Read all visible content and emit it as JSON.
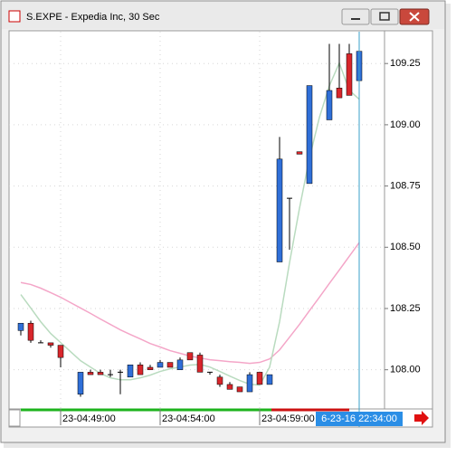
{
  "chart_data": {
    "type": "candlestick",
    "title": "S.EXPE - Expedia Inc, 30 Sec",
    "up_color": "#2f6fd8",
    "down_color": "#d8262b",
    "open": [
      108.16,
      108.19,
      108.11,
      108.11,
      108.1,
      null,
      107.9,
      107.99,
      107.99,
      107.98,
      107.99,
      107.97,
      108.02,
      108.01,
      108.01,
      108.03,
      108.0,
      108.07,
      108.06,
      107.99,
      107.97,
      107.94,
      107.93,
      107.91,
      107.99,
      107.94,
      108.44,
      108.7,
      108.89,
      108.76,
      null,
      109.02,
      109.15,
      109.29,
      109.18
    ],
    "high": [
      108.19,
      108.2,
      108.12,
      108.11,
      108.1,
      null,
      107.99,
      108.0,
      108.0,
      108.0,
      108.0,
      108.02,
      108.03,
      108.02,
      108.04,
      108.03,
      108.05,
      108.07,
      108.07,
      107.99,
      107.98,
      107.95,
      107.93,
      107.99,
      107.99,
      107.98,
      108.95,
      108.7,
      108.89,
      109.16,
      null,
      109.33,
      109.33,
      109.33,
      109.3
    ],
    "low": [
      108.14,
      108.11,
      108.11,
      108.09,
      108.01,
      null,
      107.89,
      107.98,
      107.98,
      107.97,
      107.9,
      107.97,
      107.98,
      108.0,
      108.01,
      108.01,
      108.0,
      108.04,
      107.99,
      107.98,
      107.93,
      107.92,
      107.91,
      107.91,
      107.94,
      107.94,
      108.44,
      108.49,
      108.88,
      108.76,
      null,
      109.02,
      109.11,
      109.12,
      109.18
    ],
    "close": [
      108.19,
      108.12,
      108.11,
      108.1,
      108.05,
      null,
      107.99,
      107.98,
      107.98,
      107.98,
      107.99,
      108.02,
      107.98,
      108.0,
      108.03,
      108.01,
      108.04,
      108.04,
      107.99,
      107.99,
      107.94,
      107.92,
      107.91,
      107.98,
      107.94,
      107.98,
      108.86,
      108.7,
      108.88,
      109.16,
      null,
      109.14,
      109.11,
      109.12,
      109.3
    ],
    "series": [
      {
        "color": "#f4a6c8",
        "values": [
          108.356,
          108.348,
          108.333,
          108.315,
          108.296,
          108.274,
          108.252,
          108.23,
          108.207,
          108.185,
          108.163,
          108.144,
          108.126,
          108.107,
          108.093,
          108.078,
          108.067,
          108.056,
          108.048,
          108.041,
          108.037,
          108.033,
          108.03,
          108.026,
          108.03,
          108.044,
          108.081,
          108.133,
          108.185,
          108.241,
          108.296,
          108.352,
          108.407,
          108.463,
          108.519
        ]
      },
      {
        "color": "#b9dbbf",
        "values": [
          108.307,
          108.252,
          108.196,
          108.148,
          108.111,
          108.074,
          108.037,
          108.011,
          107.985,
          107.967,
          107.959,
          107.959,
          107.967,
          107.978,
          107.993,
          108.004,
          108.011,
          108.019,
          108.022,
          108.011,
          107.993,
          107.974,
          107.956,
          107.941,
          107.937,
          108.011,
          108.196,
          108.437,
          108.659,
          108.863,
          109.03,
          109.159,
          109.252,
          109.141,
          109.104
        ]
      }
    ],
    "ylim": [
      107.84,
      109.38
    ],
    "yticks": [
      {
        "value": 108,
        "label": "108.00"
      },
      {
        "value": 108.25,
        "label": "108.25"
      },
      {
        "value": 108.5,
        "label": "108.50"
      },
      {
        "value": 108.75,
        "label": "108.75"
      },
      {
        "value": 109,
        "label": "109.00"
      },
      {
        "value": 109.25,
        "label": "109.25"
      }
    ],
    "xticks": [
      {
        "value": 4,
        "label": "23-04:49:00"
      },
      {
        "value": 14,
        "label": "23-04:54:00"
      },
      {
        "value": 24,
        "label": "23-04:59:00"
      }
    ],
    "cursor": {
      "value": 34,
      "label": "6-23-16 22:34:00"
    },
    "grid": true
  }
}
